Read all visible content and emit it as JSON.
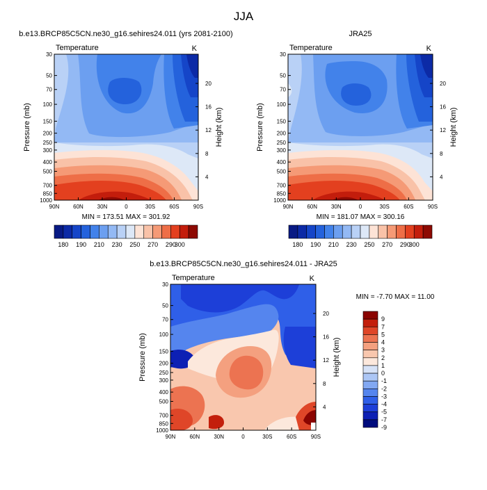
{
  "page": {
    "title": "JJA"
  },
  "chart_data": [
    {
      "type": "heatmap",
      "title": "b.e13.BRCP85C5CN.ne30_g16.sehires24.011 (yrs 2081-2100)",
      "subtitle_left": "Temperature",
      "subtitle_right": "K",
      "ylabel": "Pressure (mb)",
      "ylabel_right": "Height (km)",
      "x_ticks": [
        "90N",
        "60N",
        "30N",
        "0",
        "30S",
        "60S",
        "90S"
      ],
      "y_ticks": [
        "30",
        "50",
        "70",
        "100",
        "150",
        "200",
        "250",
        "300",
        "400",
        "500",
        "700",
        "850",
        "1000"
      ],
      "height_ticks": [
        "20",
        "16",
        "12",
        "8",
        "4"
      ],
      "stats": "MIN = 173.51   MAX = 301.92",
      "min": 173.51,
      "max": 301.92,
      "colorbar_labels": [
        "180",
        "190",
        "210",
        "230",
        "250",
        "270",
        "290",
        "300"
      ]
    },
    {
      "type": "heatmap",
      "title": "JRA25",
      "subtitle_left": "Temperature",
      "subtitle_right": "K",
      "ylabel": "Pressure (mb)",
      "ylabel_right": "Height (km)",
      "x_ticks": [
        "90N",
        "60N",
        "30N",
        "0",
        "30S",
        "60S",
        "90S"
      ],
      "y_ticks": [
        "30",
        "50",
        "70",
        "100",
        "150",
        "200",
        "250",
        "300",
        "400",
        "500",
        "700",
        "850",
        "1000"
      ],
      "height_ticks": [
        "20",
        "16",
        "12",
        "8",
        "4"
      ],
      "stats": "MIN = 181.07   MAX = 300.16",
      "min": 181.07,
      "max": 300.16,
      "colorbar_labels": [
        "180",
        "190",
        "210",
        "230",
        "250",
        "270",
        "290",
        "300"
      ]
    },
    {
      "type": "heatmap",
      "title": "b.e13.BRCP85C5CN.ne30_g16.sehires24.011 - JRA25",
      "subtitle_left": "Temperature",
      "subtitle_right": "K",
      "ylabel": "Pressure (mb)",
      "ylabel_right": "Height (km)",
      "x_ticks": [
        "90N",
        "60N",
        "30N",
        "0",
        "30S",
        "60S",
        "90S"
      ],
      "y_ticks": [
        "30",
        "50",
        "70",
        "100",
        "150",
        "200",
        "250",
        "300",
        "400",
        "500",
        "700",
        "850",
        "1000"
      ],
      "height_ticks": [
        "20",
        "16",
        "12",
        "8",
        "4"
      ],
      "stats": "MIN = -7.70   MAX = 11.00",
      "min": -7.7,
      "max": 11.0,
      "colorbar_labels": [
        "9",
        "7",
        "5",
        "4",
        "3",
        "2",
        "1",
        "0",
        "-1",
        "-2",
        "-3",
        "-4",
        "-5",
        "-7",
        "-9"
      ]
    }
  ],
  "palettes": {
    "temperature": [
      "#081a84",
      "#0c2aa6",
      "#1545c8",
      "#2462dc",
      "#4282ea",
      "#6c9ff0",
      "#93b9f4",
      "#b9d1f6",
      "#dde8f7",
      "#fde3d6",
      "#f9c2a8",
      "#f59a76",
      "#ee6e47",
      "#e3401f",
      "#c31d0c",
      "#8d0a03"
    ],
    "difference": [
      "#000c7d",
      "#0d20b4",
      "#1d3fd8",
      "#2f5fe8",
      "#5585ee",
      "#82a8f2",
      "#acc6f5",
      "#d6e2f7",
      "#fce8dc",
      "#f9c7ae",
      "#f4a07f",
      "#ec7351",
      "#df4628",
      "#c31f0c",
      "#8a0401"
    ]
  }
}
